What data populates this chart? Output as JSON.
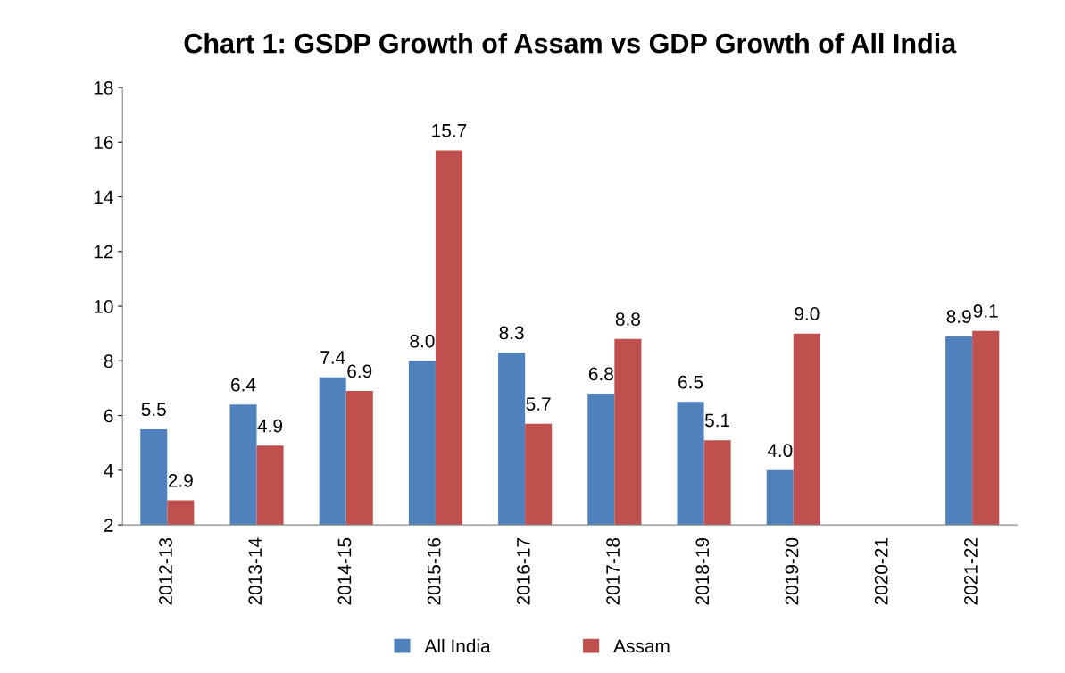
{
  "chart_data": {
    "type": "bar",
    "title": "Chart 1: GSDP Growth of Assam vs GDP Growth of All India",
    "categories": [
      "2012-13",
      "2013-14",
      "2014-15",
      "2015-16",
      "2016-17",
      "2017-18",
      "2018-19",
      "2019-20",
      "2020-21",
      "2021-22"
    ],
    "series": [
      {
        "name": "All India",
        "color": "#4f81bd",
        "values": [
          5.5,
          6.4,
          7.4,
          8.0,
          8.3,
          6.8,
          6.5,
          4.0,
          null,
          8.9
        ],
        "value_labels": [
          "5.5",
          "6.4",
          "7.4",
          "8.0",
          "8.3",
          "6.8",
          "6.5",
          "4.0",
          null,
          "8.9"
        ]
      },
      {
        "name": "Assam",
        "color": "#c0504d",
        "values": [
          2.9,
          4.9,
          6.9,
          15.7,
          5.7,
          8.8,
          5.1,
          9.0,
          null,
          9.1
        ],
        "value_labels": [
          "2.9",
          "4.9",
          "6.9",
          "15.7",
          "5.7",
          "8.8",
          "5.1",
          "9.0",
          null,
          "9.1"
        ]
      }
    ],
    "ylim": [
      2,
      18
    ],
    "yticks": [
      2,
      4,
      6,
      8,
      10,
      12,
      14,
      16,
      18
    ],
    "grid": false,
    "legend": "bottom"
  }
}
